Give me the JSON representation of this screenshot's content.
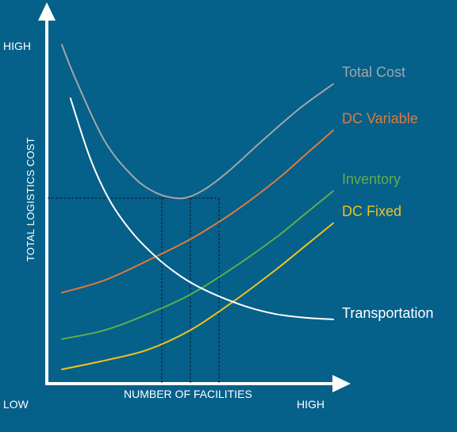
{
  "chart_data": {
    "type": "line",
    "title": "",
    "xlabel": "NUMBER OF FACILITIES",
    "ylabel": "TOTAL LOGISTICS COST",
    "x_low_label": "LOW",
    "x_high_label": "HIGH",
    "y_high_label": "HIGH",
    "xlim": [
      0,
      10
    ],
    "ylim": [
      0,
      10
    ],
    "grid": false,
    "legend": "inline-right",
    "series": [
      {
        "name": "Total Cost",
        "color": "#a3a6a8",
        "x": [
          0.5,
          1.0,
          2.0,
          3.0,
          3.8,
          4.5,
          5.0,
          5.6,
          6.4,
          7.5,
          8.8,
          10.0
        ],
        "y": [
          9.5,
          8.5,
          6.8,
          5.8,
          5.35,
          5.2,
          5.25,
          5.5,
          6.0,
          6.8,
          7.7,
          8.4
        ]
      },
      {
        "name": "DC Variable",
        "color": "#e07a3a",
        "x": [
          0.5,
          2.0,
          3.5,
          5.0,
          6.5,
          8.0,
          9.0,
          10.0
        ],
        "y": [
          2.55,
          2.9,
          3.45,
          4.05,
          4.8,
          5.7,
          6.4,
          7.1
        ]
      },
      {
        "name": "Inventory",
        "color": "#5fae4b",
        "x": [
          0.5,
          2.0,
          3.5,
          5.0,
          6.5,
          8.0,
          9.0,
          10.0
        ],
        "y": [
          1.25,
          1.5,
          1.95,
          2.5,
          3.25,
          4.1,
          4.75,
          5.4
        ]
      },
      {
        "name": "DC Fixed",
        "color": "#f0c419",
        "x": [
          0.5,
          2.0,
          3.5,
          5.0,
          6.5,
          8.0,
          9.0,
          10.0
        ],
        "y": [
          0.4,
          0.65,
          0.95,
          1.5,
          2.3,
          3.2,
          3.85,
          4.5
        ]
      },
      {
        "name": "Transportation",
        "color": "#ffffff",
        "x": [
          0.8,
          1.5,
          2.2,
          3.0,
          3.8,
          4.5,
          5.2,
          6.0,
          7.0,
          8.0,
          9.0,
          10.0
        ],
        "y": [
          8.0,
          6.3,
          5.1,
          4.2,
          3.55,
          3.1,
          2.75,
          2.45,
          2.15,
          1.95,
          1.85,
          1.8
        ]
      }
    ],
    "optimum_band": {
      "x": [
        4.0,
        5.0,
        6.0
      ],
      "y": 5.2
    }
  }
}
